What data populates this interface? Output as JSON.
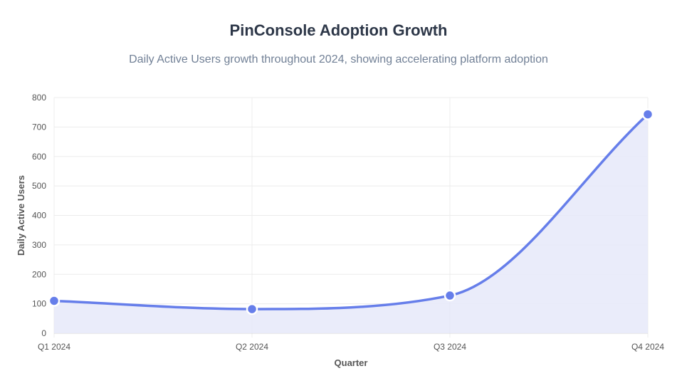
{
  "chart_data": {
    "type": "area",
    "title": "PinConsole Adoption Growth",
    "subtitle": "Daily Active Users growth throughout 2024, showing accelerating platform adoption",
    "xlabel": "Quarter",
    "ylabel": "Daily Active Users",
    "categories": [
      "Q1 2024",
      "Q2 2024",
      "Q3 2024",
      "Q4 2024"
    ],
    "values": [
      110,
      82,
      128,
      743
    ],
    "ylim": [
      0,
      800
    ],
    "yticks": [
      0,
      100,
      200,
      300,
      400,
      500,
      600,
      700,
      800
    ],
    "grid": true,
    "colors": {
      "line": "#667eea",
      "fill": "#e6e9f9",
      "grid": "#ececec",
      "point_border": "#ffffff"
    }
  }
}
